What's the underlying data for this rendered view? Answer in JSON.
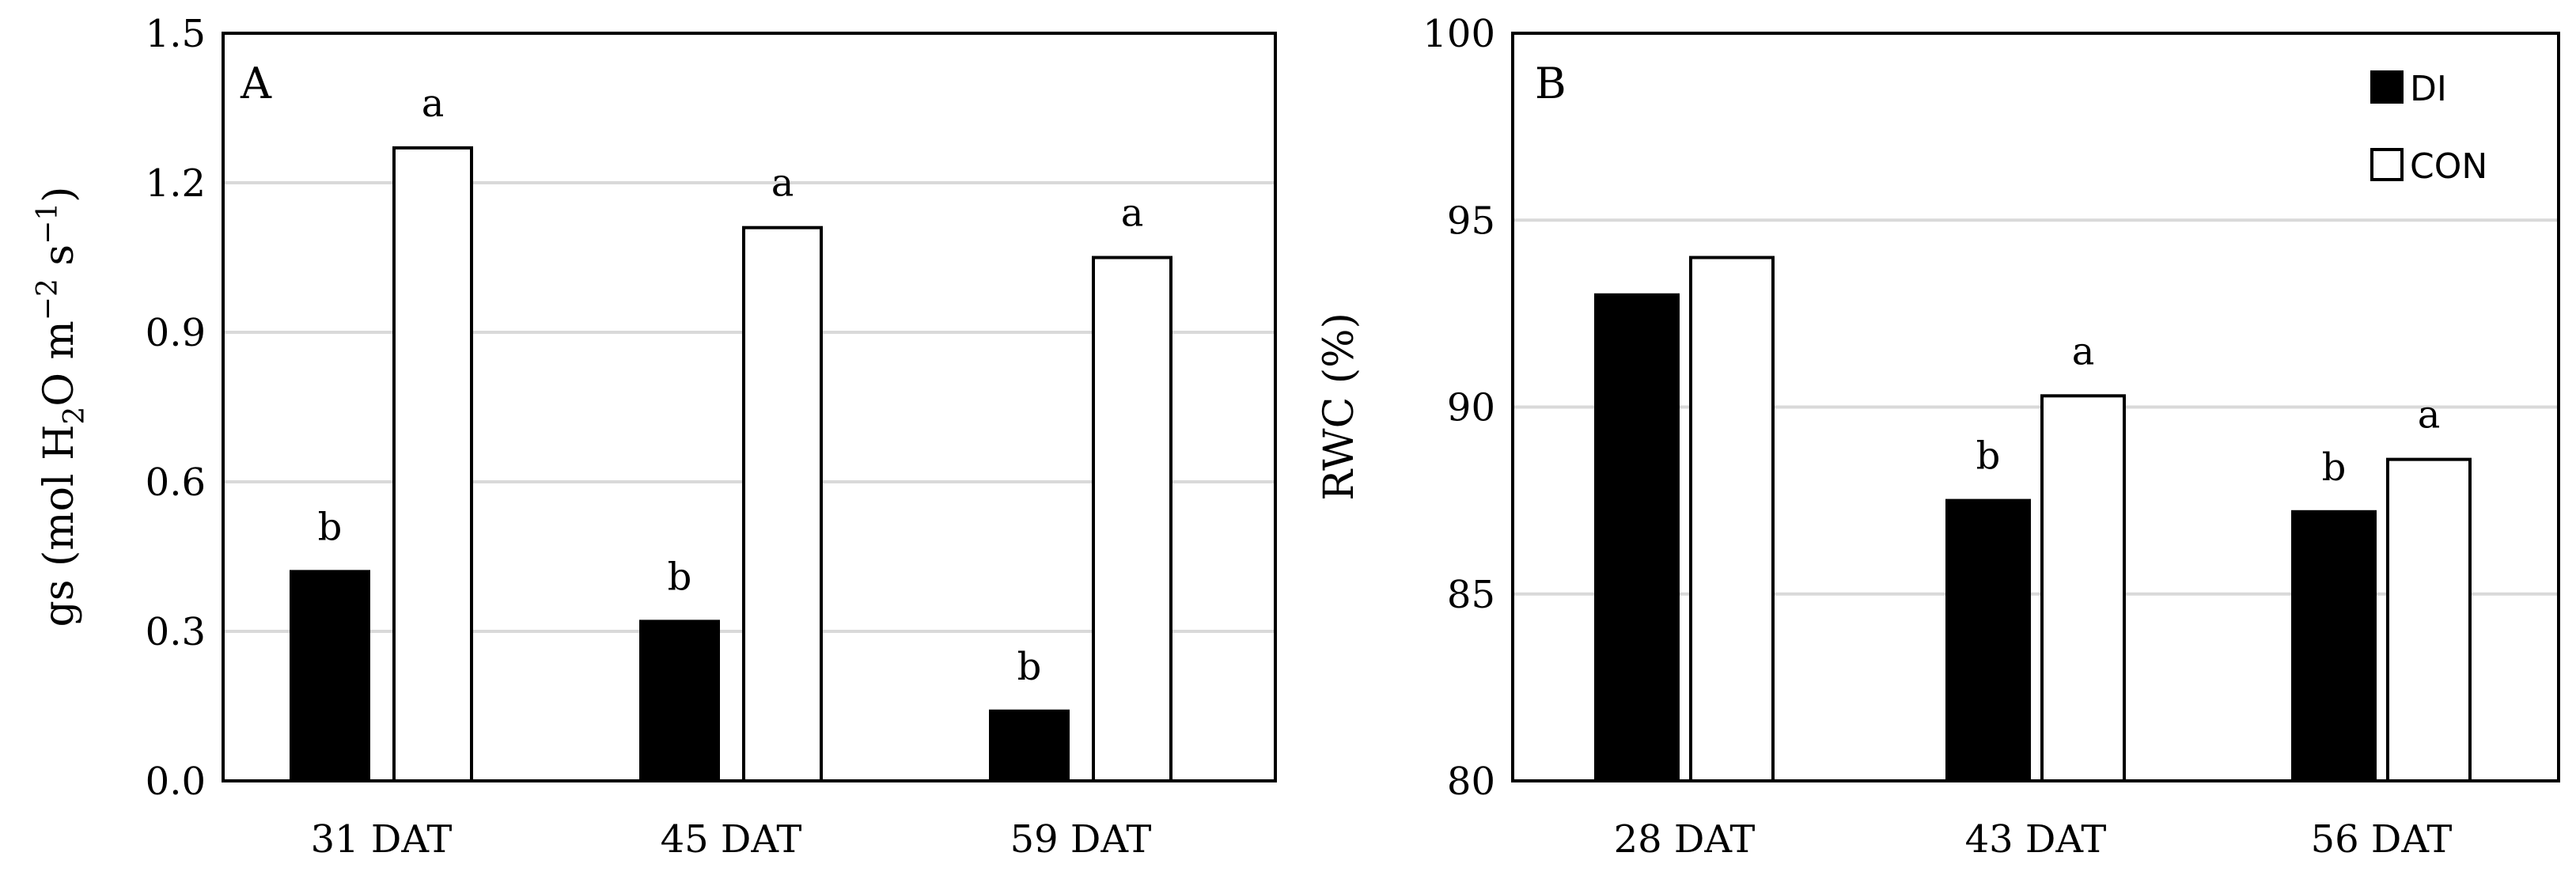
{
  "colors": {
    "di": "#000000",
    "con": "#ffffff",
    "bar_stroke": "#000000",
    "grid": "#d9d9d9"
  },
  "chart_data": [
    {
      "type": "bar",
      "panel_label": "A",
      "title": "",
      "xlabel": "",
      "ylabel": {
        "text_1": "gs (mol H",
        "sub_1": "2",
        "text_2": "O m",
        "sup_1": "−2",
        "text_3": " s",
        "sup_2": "−1",
        "text_4": ")"
      },
      "ylim": [
        0,
        1.5
      ],
      "yticks": [
        "0.0",
        "0.3",
        "0.6",
        "0.9",
        "1.2",
        "1.5"
      ],
      "categories": [
        "31 DAT",
        "45 DAT",
        "59 DAT"
      ],
      "series": [
        {
          "name": "DI",
          "values": [
            0.42,
            0.32,
            0.14
          ],
          "letters": [
            "b",
            "b",
            "b"
          ]
        },
        {
          "name": "CON",
          "values": [
            1.27,
            1.11,
            1.05
          ],
          "letters": [
            "a",
            "a",
            "a"
          ]
        }
      ],
      "grid": true
    },
    {
      "type": "bar",
      "panel_label": "B",
      "title": "",
      "xlabel": "",
      "ylabel": "RWC (%)",
      "ylim": [
        80,
        100
      ],
      "yticks": [
        "80",
        "85",
        "90",
        "95",
        "100"
      ],
      "categories": [
        "28 DAT",
        "43 DAT",
        "56 DAT"
      ],
      "series": [
        {
          "name": "DI",
          "values": [
            93.0,
            87.5,
            87.2
          ],
          "letters": [
            "",
            "b",
            "b"
          ]
        },
        {
          "name": "CON",
          "values": [
            94.0,
            90.3,
            88.6
          ],
          "letters": [
            "",
            "a",
            "a"
          ]
        }
      ],
      "legend": {
        "entries": [
          "DI",
          "CON"
        ],
        "position": "top-right"
      },
      "grid": true
    }
  ]
}
